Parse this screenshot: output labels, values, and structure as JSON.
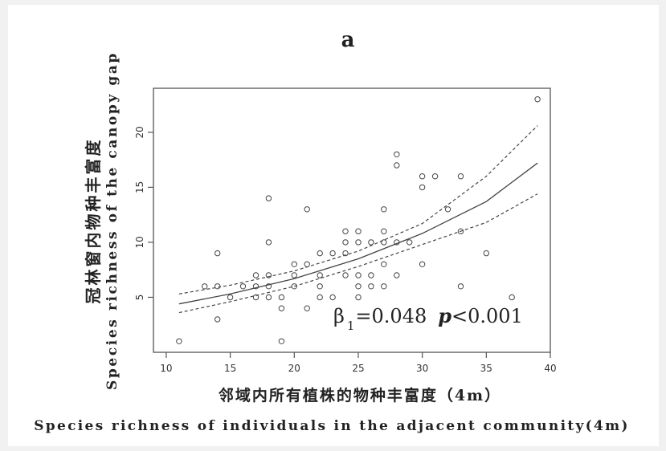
{
  "chart_data": {
    "type": "scatter",
    "title": "a",
    "xlabel_cn": "邻域内所有植株的物种丰富度（4m）",
    "xlabel_en": "Species richness of individuals in the adjacent community(4m)",
    "ylabel_cn": "冠林窗内物种丰富度",
    "ylabel_en": "Species richness of the canopy gap",
    "xlim": [
      9,
      40
    ],
    "ylim": [
      0,
      24
    ],
    "xticks": [
      10,
      15,
      20,
      25,
      30,
      35,
      40
    ],
    "yticks": [
      5,
      10,
      15,
      20
    ],
    "grid": false,
    "annotation": {
      "beta_symbol": "β",
      "beta_subscript": "1",
      "beta_value": "=0.048",
      "p_symbol": "p",
      "p_value": "<0.001"
    },
    "points": [
      [
        11,
        1
      ],
      [
        13,
        6
      ],
      [
        14,
        9
      ],
      [
        14,
        6
      ],
      [
        14,
        3
      ],
      [
        15,
        5
      ],
      [
        16,
        6
      ],
      [
        17,
        7
      ],
      [
        17,
        6
      ],
      [
        17,
        5
      ],
      [
        18,
        14
      ],
      [
        18,
        10
      ],
      [
        18,
        7
      ],
      [
        18,
        6
      ],
      [
        18,
        5
      ],
      [
        19,
        5
      ],
      [
        19,
        4
      ],
      [
        19,
        1
      ],
      [
        20,
        8
      ],
      [
        20,
        7
      ],
      [
        20,
        6
      ],
      [
        21,
        13
      ],
      [
        21,
        8
      ],
      [
        21,
        4
      ],
      [
        22,
        9
      ],
      [
        22,
        7
      ],
      [
        22,
        6
      ],
      [
        22,
        5
      ],
      [
        23,
        9
      ],
      [
        23,
        5
      ],
      [
        24,
        11
      ],
      [
        24,
        10
      ],
      [
        24,
        9
      ],
      [
        24,
        7
      ],
      [
        25,
        11
      ],
      [
        25,
        10
      ],
      [
        25,
        7
      ],
      [
        25,
        6
      ],
      [
        25,
        5
      ],
      [
        26,
        10
      ],
      [
        26,
        7
      ],
      [
        26,
        6
      ],
      [
        27,
        13
      ],
      [
        27,
        11
      ],
      [
        27,
        10
      ],
      [
        27,
        8
      ],
      [
        27,
        6
      ],
      [
        28,
        18
      ],
      [
        28,
        17
      ],
      [
        28,
        10
      ],
      [
        28,
        7
      ],
      [
        29,
        10
      ],
      [
        30,
        16
      ],
      [
        30,
        15
      ],
      [
        30,
        8
      ],
      [
        31,
        16
      ],
      [
        32,
        13
      ],
      [
        33,
        16
      ],
      [
        33,
        11
      ],
      [
        33,
        6
      ],
      [
        35,
        9
      ],
      [
        37,
        5
      ],
      [
        39,
        23
      ]
    ],
    "fit": {
      "model": "exponential",
      "x": [
        11,
        15,
        20,
        25,
        30,
        35,
        39
      ],
      "y": [
        4.4,
        5.3,
        6.7,
        8.5,
        10.8,
        13.7,
        17.2
      ]
    },
    "ci_upper": {
      "x": [
        11,
        15,
        20,
        25,
        30,
        35,
        39
      ],
      "y": [
        5.3,
        6.1,
        7.4,
        9.2,
        11.7,
        16.0,
        20.6
      ]
    },
    "ci_lower": {
      "x": [
        11,
        15,
        20,
        25,
        30,
        35,
        39
      ],
      "y": [
        3.6,
        4.6,
        6.0,
        7.8,
        9.8,
        11.8,
        14.4
      ]
    }
  }
}
